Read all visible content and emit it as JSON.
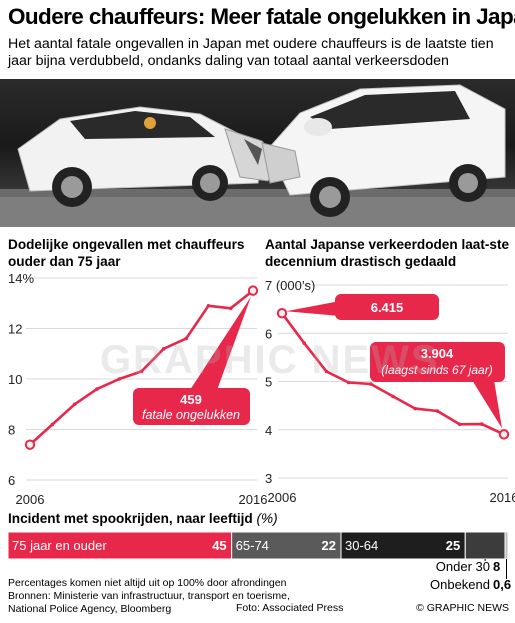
{
  "header": {
    "title": "Oudere chauffeurs: Meer fatale ongelukken in Japan",
    "subtitle": "Het aantal fatale ongevallen in Japan met oudere chauffeurs is de laatste tien jaar bijna verdubbeld, ondanks daling van totaal aantal verkeersdoden"
  },
  "colors": {
    "accent": "#e8284a",
    "dark": "#333333",
    "mid": "#666666",
    "black": "#000000"
  },
  "chart_data": [
    {
      "type": "line",
      "title": "Dodelijke ongevallen met chauffeurs ouder dan 75 jaar",
      "x": [
        2006,
        2007,
        2008,
        2009,
        2010,
        2011,
        2012,
        2013,
        2014,
        2015,
        2016
      ],
      "series": [
        {
          "values": [
            7.4,
            8.2,
            9.0,
            9.6,
            10.0,
            10.3,
            11.2,
            11.6,
            12.9,
            12.8,
            13.5
          ]
        }
      ],
      "ylim": [
        6,
        14
      ],
      "yticks": [
        "6",
        "8",
        "10",
        "12",
        "14%"
      ],
      "xticks": [
        "2006",
        "2016"
      ],
      "callout": {
        "value": "459",
        "label": "fatale ongelukken"
      }
    },
    {
      "type": "line",
      "title": "Aantal Japanse verkeerdoden laat-ste decennium drastisch gedaald",
      "x": [
        2006,
        2007,
        2008,
        2009,
        2010,
        2011,
        2012,
        2013,
        2014,
        2015,
        2016
      ],
      "series": [
        {
          "values": [
            6.415,
            5.796,
            5.209,
            4.979,
            4.948,
            4.691,
            4.438,
            4.388,
            4.113,
            4.117,
            3.904
          ]
        }
      ],
      "ylim": [
        3,
        7
      ],
      "yticks": [
        "3",
        "4",
        "5",
        "6",
        "7 (000’s)"
      ],
      "xticks": [
        "2006",
        "2016"
      ],
      "callouts": [
        {
          "value": "6.415"
        },
        {
          "value": "3.904",
          "label": "(laagst sinds 67 jaar)"
        }
      ]
    },
    {
      "type": "bar",
      "title": "Incident met spookrijden, naar leeftijd",
      "unit": "(%)",
      "categories": [
        "75 jaar en ouder",
        "65-74",
        "30-64",
        "Onder 30",
        "Onbekend"
      ],
      "values": [
        45,
        22,
        25,
        8,
        0.6
      ],
      "labels": [
        "45",
        "22",
        "25",
        "8",
        "0,6"
      ]
    }
  ],
  "footer": {
    "note": "Percentages komen niet altijd uit op 100% door afrondingen",
    "sources": "Bronnen: Ministerie van infrastructuur, transport en toerisme, National Police Agency, Bloomberg",
    "photo_credit": "Foto: Associated Press",
    "brand": "© GRAPHIC NEWS"
  },
  "watermark": "GRAPHIC NEWS"
}
